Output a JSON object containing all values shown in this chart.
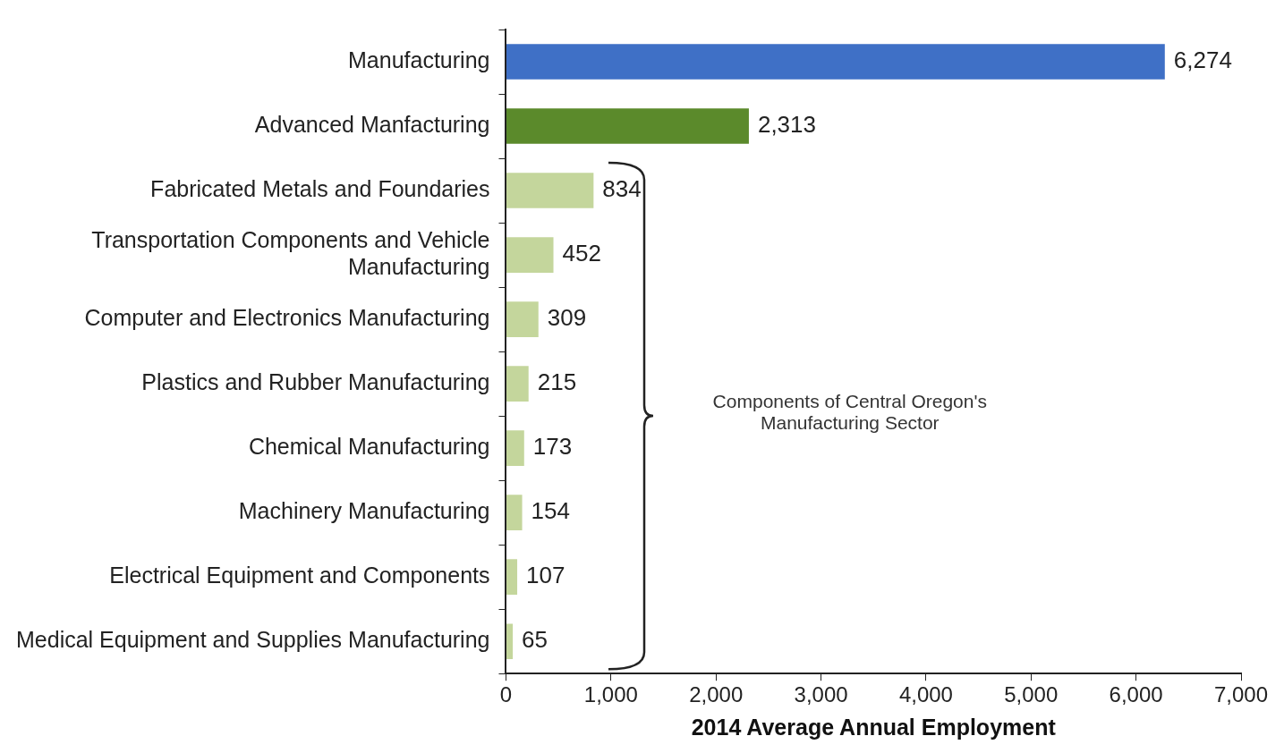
{
  "chart_data": {
    "type": "bar",
    "orientation": "horizontal",
    "xlabel": "2014 Average Annual Employment",
    "categories": [
      "Manufacturing",
      "Advanced Manfacturing",
      "Fabricated Metals and Foundaries",
      "Transportation Components and Vehicle Manufacturing",
      "Computer and Electronics Manufacturing",
      "Plastics and Rubber Manufacturing",
      "Chemical Manufacturing",
      "Machinery Manufacturing",
      "Electrical Equipment and Components",
      "Medical Equipment and Supplies Manufacturing"
    ],
    "values": [
      6274,
      2313,
      834,
      452,
      309,
      215,
      173,
      154,
      107,
      65
    ],
    "colors": [
      "#3f70c6",
      "#5b8a2b",
      "#c4d69c",
      "#c4d69c",
      "#c4d69c",
      "#c4d69c",
      "#c4d69c",
      "#c4d69c",
      "#c4d69c",
      "#c4d69c"
    ],
    "value_labels": [
      "6,274",
      "2,313",
      "834",
      "452",
      "309",
      "215",
      "173",
      "154",
      "107",
      "65"
    ],
    "xlim": [
      0,
      7000
    ],
    "xticks": [
      {
        "value": 0,
        "label": "0"
      },
      {
        "value": 1000,
        "label": "1,000"
      },
      {
        "value": 2000,
        "label": "2,000"
      },
      {
        "value": 3000,
        "label": "3,000"
      },
      {
        "value": 4000,
        "label": "4,000"
      },
      {
        "value": 5000,
        "label": "5,000"
      },
      {
        "value": 6000,
        "label": "6,000"
      },
      {
        "value": 7000,
        "label": "7,000"
      }
    ],
    "grid": false,
    "legend": false,
    "annotations": [
      "Components of Central Oregon's Manufacturing Sector"
    ]
  }
}
